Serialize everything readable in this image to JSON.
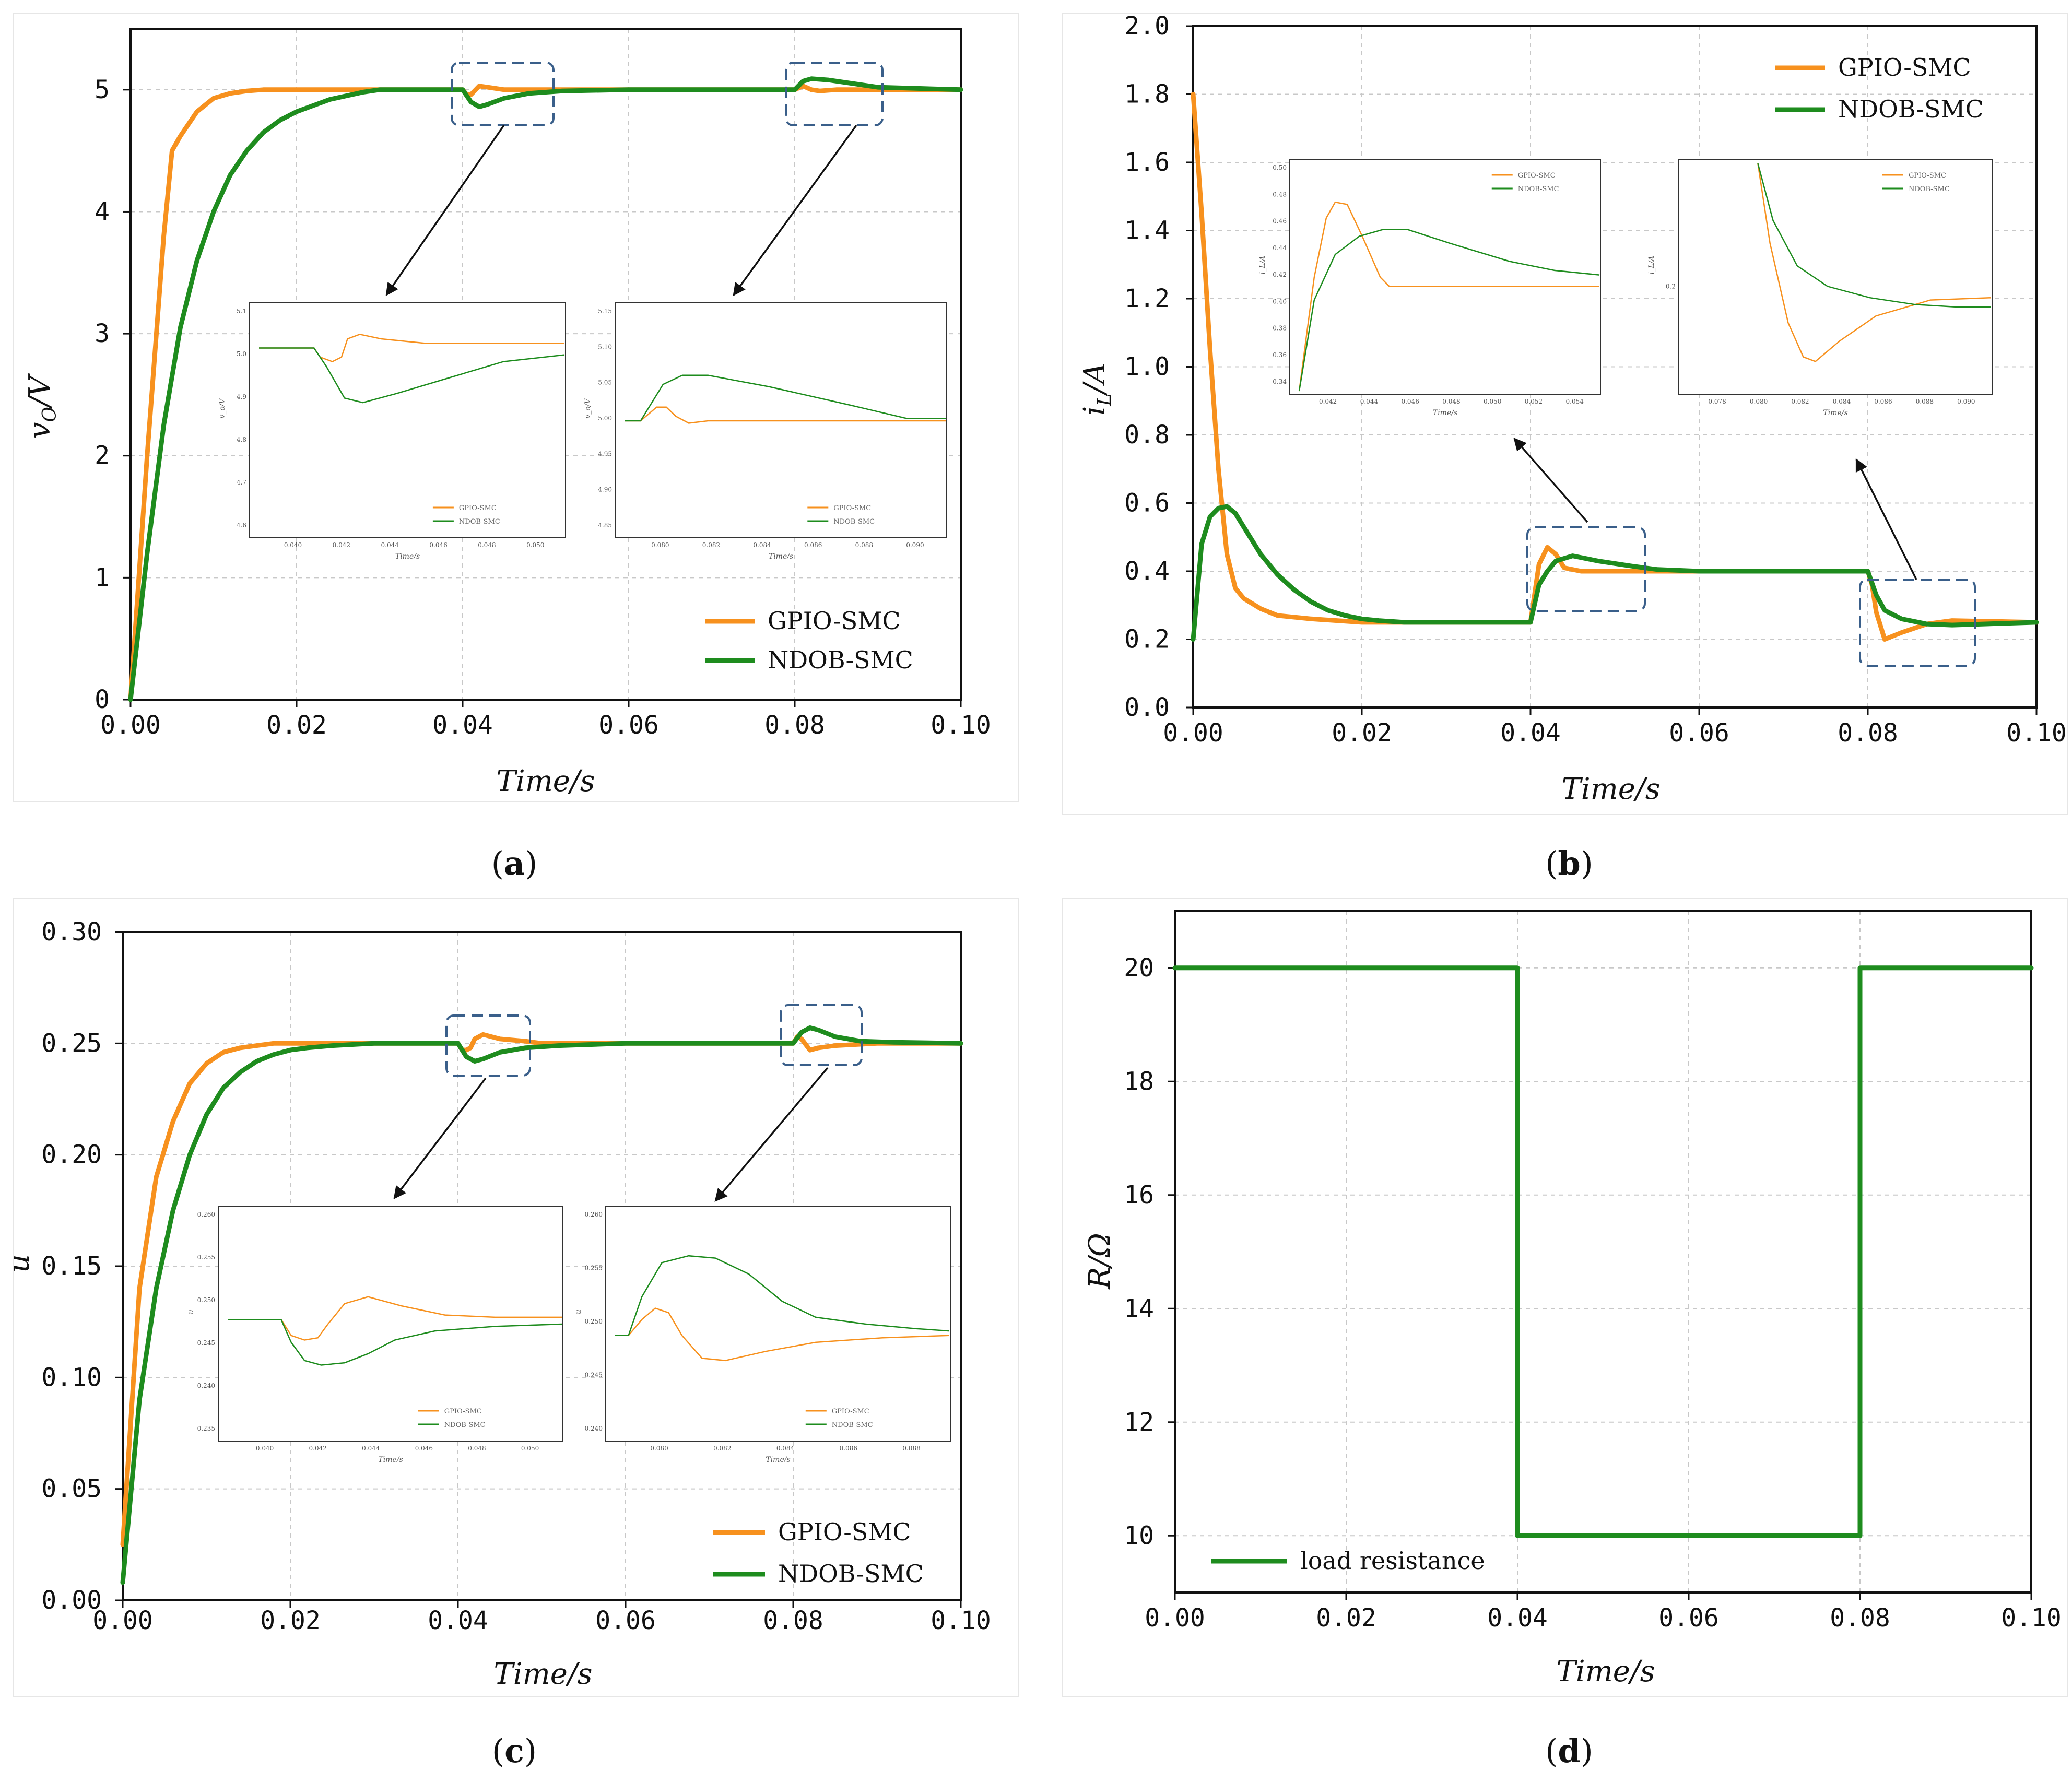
{
  "colors": {
    "gpio": "#F7911E",
    "ndob": "#1E8C1E",
    "zoom_box": "#3A5F8A",
    "grid": "#C8C8C8",
    "arrow": "#111111"
  },
  "panels": [
    {
      "id": "a",
      "label_open": "(",
      "label_letter": "a",
      "label_close": ")"
    },
    {
      "id": "b",
      "label_open": "(",
      "label_letter": "b",
      "label_close": ")"
    },
    {
      "id": "c",
      "label_open": "(",
      "label_letter": "c",
      "label_close": ")"
    },
    {
      "id": "d",
      "label_open": "(",
      "label_letter": "d",
      "label_close": ")"
    }
  ],
  "legend": {
    "gpio": "GPIO-SMC",
    "ndob": "NDOB-SMC",
    "load": "load resistance"
  },
  "chart_data": [
    {
      "panel": "a",
      "type": "line",
      "xlabel": "Time/s",
      "ylabel": "vo/V",
      "ylabel_main": "v",
      "ylabel_sub": "O",
      "ylabel_rest": "/V",
      "xlim": [
        0,
        0.1
      ],
      "ylim": [
        0,
        5.5
      ],
      "xticks": [
        "0.00",
        "0.02",
        "0.04",
        "0.06",
        "0.08",
        "0.10"
      ],
      "yticks": [
        "0",
        "1",
        "2",
        "3",
        "4",
        "5"
      ],
      "series": [
        {
          "name": "GPIO-SMC",
          "x": [
            0,
            0.002,
            0.004,
            0.005,
            0.006,
            0.008,
            0.01,
            0.012,
            0.014,
            0.016,
            0.018,
            0.02,
            0.03,
            0.04,
            0.0405,
            0.041,
            0.042,
            0.043,
            0.045,
            0.05,
            0.06,
            0.08,
            0.081,
            0.082,
            0.083,
            0.085,
            0.09,
            0.1
          ],
          "y": [
            0,
            2.0,
            3.8,
            4.5,
            4.62,
            4.82,
            4.93,
            4.97,
            4.99,
            5.0,
            5.0,
            5.0,
            5.0,
            5.0,
            4.96,
            4.96,
            5.03,
            5.02,
            5.0,
            5.0,
            5.0,
            5.0,
            5.03,
            5.0,
            4.99,
            5.0,
            5.0,
            5.0
          ]
        },
        {
          "name": "NDOB-SMC",
          "x": [
            0,
            0.002,
            0.004,
            0.006,
            0.008,
            0.01,
            0.012,
            0.014,
            0.016,
            0.018,
            0.02,
            0.022,
            0.024,
            0.026,
            0.028,
            0.03,
            0.04,
            0.041,
            0.042,
            0.043,
            0.045,
            0.048,
            0.052,
            0.06,
            0.08,
            0.081,
            0.082,
            0.084,
            0.087,
            0.09,
            0.1
          ],
          "y": [
            0,
            1.2,
            2.25,
            3.05,
            3.6,
            4.0,
            4.3,
            4.5,
            4.65,
            4.75,
            4.82,
            4.87,
            4.92,
            4.95,
            4.98,
            5.0,
            5.0,
            4.9,
            4.86,
            4.88,
            4.93,
            4.97,
            4.99,
            5.0,
            5.0,
            5.07,
            5.09,
            5.08,
            5.05,
            5.02,
            5.0
          ]
        }
      ],
      "insets": [
        {
          "xticks": [
            "0.040",
            "0.042",
            "0.044",
            "0.046",
            "0.048",
            "0.050"
          ],
          "yticks": [
            "5.1",
            "5.0",
            "4.9",
            "4.8",
            "4.7",
            "4.6"
          ],
          "xlabel": "Time/s",
          "ylabel": "v_o/V",
          "legend": [
            "GPIO-SMC",
            "NDOB-SMC"
          ]
        },
        {
          "xticks": [
            "0.080",
            "0.082",
            "0.084",
            "0.086",
            "0.088",
            "0.090"
          ],
          "yticks": [
            "5.15",
            "5.10",
            "5.05",
            "5.00",
            "4.95",
            "4.90",
            "4.85"
          ],
          "xlabel": "Time/s",
          "ylabel": "v_o/V",
          "legend": [
            "GPIO-SMC",
            "NDOB-SMC"
          ]
        }
      ]
    },
    {
      "panel": "b",
      "type": "line",
      "xlabel": "Time/s",
      "ylabel": "iL/A",
      "ylabel_main": "i",
      "ylabel_sub": "L",
      "ylabel_rest": "/A",
      "xlim": [
        0,
        0.1
      ],
      "ylim": [
        0,
        2.0
      ],
      "xticks": [
        "0.00",
        "0.02",
        "0.04",
        "0.06",
        "0.08",
        "0.10"
      ],
      "yticks": [
        "0.0",
        "0.2",
        "0.4",
        "0.6",
        "0.8",
        "1.0",
        "1.2",
        "1.4",
        "1.6",
        "1.8",
        "2.0"
      ],
      "series": [
        {
          "name": "GPIO-SMC",
          "x": [
            0,
            0.001,
            0.002,
            0.003,
            0.004,
            0.005,
            0.006,
            0.008,
            0.01,
            0.014,
            0.02,
            0.025,
            0.04,
            0.041,
            0.042,
            0.043,
            0.044,
            0.046,
            0.05,
            0.06,
            0.08,
            0.0805,
            0.081,
            0.082,
            0.084,
            0.087,
            0.09,
            0.1
          ],
          "y": [
            1.8,
            1.45,
            1.05,
            0.7,
            0.45,
            0.35,
            0.32,
            0.29,
            0.27,
            0.26,
            0.25,
            0.25,
            0.25,
            0.42,
            0.47,
            0.45,
            0.41,
            0.4,
            0.4,
            0.4,
            0.4,
            0.36,
            0.28,
            0.2,
            0.22,
            0.245,
            0.255,
            0.25
          ]
        },
        {
          "name": "NDOB-SMC",
          "x": [
            0,
            0.001,
            0.002,
            0.003,
            0.004,
            0.005,
            0.006,
            0.008,
            0.01,
            0.012,
            0.014,
            0.016,
            0.018,
            0.02,
            0.022,
            0.025,
            0.04,
            0.041,
            0.042,
            0.043,
            0.045,
            0.048,
            0.052,
            0.055,
            0.06,
            0.08,
            0.081,
            0.082,
            0.084,
            0.087,
            0.09,
            0.1
          ],
          "y": [
            0.2,
            0.48,
            0.56,
            0.585,
            0.59,
            0.57,
            0.53,
            0.45,
            0.39,
            0.345,
            0.31,
            0.285,
            0.27,
            0.26,
            0.255,
            0.25,
            0.25,
            0.36,
            0.4,
            0.43,
            0.445,
            0.43,
            0.415,
            0.405,
            0.4,
            0.4,
            0.33,
            0.285,
            0.26,
            0.245,
            0.242,
            0.25
          ]
        }
      ],
      "insets": [
        {
          "xticks": [
            "0.042",
            "0.044",
            "0.046",
            "0.048",
            "0.050",
            "0.052",
            "0.054"
          ],
          "yticks": [
            "0.50",
            "0.48",
            "0.46",
            "0.44",
            "0.42",
            "0.40",
            "0.38",
            "0.36",
            "0.34"
          ],
          "xlabel": "Time/s",
          "ylabel": "i_L/A",
          "legend": [
            "GPIO-SMC",
            "NDOB-SMC"
          ]
        },
        {
          "xticks": [
            "0.078",
            "0.080",
            "0.082",
            "0.084",
            "0.086",
            "0.088",
            "0.090"
          ],
          "yticks": [
            "0.2"
          ],
          "xlabel": "Time/s",
          "ylabel": "i_L/A",
          "legend": [
            "GPIO-SMC",
            "NDOB-SMC"
          ]
        }
      ]
    },
    {
      "panel": "c",
      "type": "line",
      "xlabel": "Time/s",
      "ylabel": "u",
      "ylabel_main": "u",
      "ylabel_sub": "",
      "ylabel_rest": "",
      "xlim": [
        0,
        0.1
      ],
      "ylim": [
        0,
        0.3
      ],
      "xticks": [
        "0.00",
        "0.02",
        "0.04",
        "0.06",
        "0.08",
        "0.10"
      ],
      "yticks": [
        "0.00",
        "0.05",
        "0.10",
        "0.15",
        "0.20",
        "0.25",
        "0.30"
      ],
      "series": [
        {
          "name": "GPIO-SMC",
          "x": [
            0,
            0.002,
            0.004,
            0.006,
            0.008,
            0.01,
            0.012,
            0.014,
            0.016,
            0.018,
            0.02,
            0.03,
            0.04,
            0.0405,
            0.041,
            0.0415,
            0.042,
            0.043,
            0.045,
            0.048,
            0.05,
            0.08,
            0.0805,
            0.081,
            0.082,
            0.083,
            0.085,
            0.09,
            0.1
          ],
          "y": [
            0.025,
            0.14,
            0.19,
            0.215,
            0.232,
            0.241,
            0.246,
            0.248,
            0.249,
            0.25,
            0.25,
            0.25,
            0.25,
            0.247,
            0.247,
            0.248,
            0.252,
            0.254,
            0.252,
            0.251,
            0.25,
            0.25,
            0.253,
            0.252,
            0.247,
            0.248,
            0.249,
            0.25,
            0.25
          ]
        },
        {
          "name": "NDOB-SMC",
          "x": [
            0,
            0.002,
            0.004,
            0.006,
            0.008,
            0.01,
            0.012,
            0.014,
            0.016,
            0.018,
            0.02,
            0.022,
            0.025,
            0.03,
            0.04,
            0.041,
            0.042,
            0.043,
            0.045,
            0.048,
            0.052,
            0.06,
            0.08,
            0.081,
            0.082,
            0.083,
            0.085,
            0.088,
            0.092,
            0.1
          ],
          "y": [
            0.008,
            0.09,
            0.14,
            0.175,
            0.2,
            0.218,
            0.23,
            0.237,
            0.242,
            0.245,
            0.247,
            0.248,
            0.249,
            0.25,
            0.25,
            0.244,
            0.242,
            0.243,
            0.246,
            0.248,
            0.249,
            0.25,
            0.25,
            0.255,
            0.257,
            0.256,
            0.253,
            0.251,
            0.2505,
            0.25
          ]
        }
      ],
      "insets": [
        {
          "xticks": [
            "0.040",
            "0.042",
            "0.044",
            "0.046",
            "0.048",
            "0.050"
          ],
          "yticks": [
            "0.260",
            "0.255",
            "0.250",
            "0.245",
            "0.240",
            "0.235"
          ],
          "xlabel": "Time/s",
          "ylabel": "u",
          "legend": [
            "GPIO-SMC",
            "NDOB-SMC"
          ]
        },
        {
          "xticks": [
            "0.080",
            "0.082",
            "0.084",
            "0.086",
            "0.088"
          ],
          "yticks": [
            "0.260",
            "0.255",
            "0.250",
            "0.245",
            "0.240"
          ],
          "xlabel": "Time/s",
          "ylabel": "u",
          "legend": [
            "GPIO-SMC",
            "NDOB-SMC"
          ]
        }
      ]
    },
    {
      "panel": "d",
      "type": "line",
      "xlabel": "Time/s",
      "ylabel": "R/Ω",
      "ylabel_main": "R/Ω",
      "ylabel_sub": "",
      "ylabel_rest": "",
      "xlim": [
        0,
        0.1
      ],
      "ylim": [
        9,
        21
      ],
      "xticks": [
        "0.00",
        "0.02",
        "0.04",
        "0.06",
        "0.08",
        "0.10"
      ],
      "yticks": [
        "10",
        "12",
        "14",
        "16",
        "18",
        "20"
      ],
      "series": [
        {
          "name": "load resistance",
          "x": [
            0,
            0.04,
            0.04,
            0.08,
            0.08,
            0.1
          ],
          "y": [
            20,
            20,
            10,
            10,
            20,
            20
          ]
        }
      ]
    }
  ]
}
